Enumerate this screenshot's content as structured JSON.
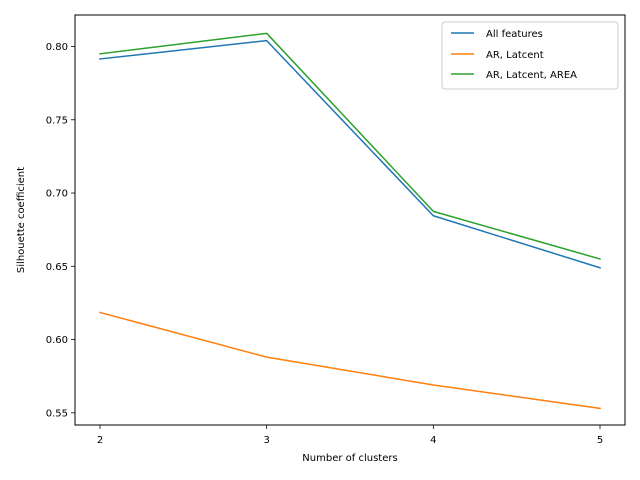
{
  "chart_data": {
    "type": "line",
    "title": "",
    "xlabel": "Number of clusters",
    "ylabel": "Silhouette coefficient",
    "x": [
      2,
      3,
      4,
      5
    ],
    "x_ticks": [
      "2",
      "3",
      "4",
      "5"
    ],
    "y_ticks": [
      "0.55",
      "0.60",
      "0.65",
      "0.70",
      "0.75",
      "0.80"
    ],
    "xlim": [
      1.85,
      5.15
    ],
    "ylim": [
      0.5417,
      0.8215
    ],
    "grid": false,
    "legend_position": "top-right",
    "series": [
      {
        "name": "All features",
        "color": "#1f77b4",
        "values": [
          0.7915,
          0.804,
          0.6845,
          0.649
        ]
      },
      {
        "name": "AR, Latcent",
        "color": "#ff7f0e",
        "values": [
          0.6185,
          0.588,
          0.569,
          0.553
        ]
      },
      {
        "name": "AR, Latcent, AREA",
        "color": "#2ca02c",
        "values": [
          0.795,
          0.809,
          0.6875,
          0.655
        ]
      }
    ]
  }
}
